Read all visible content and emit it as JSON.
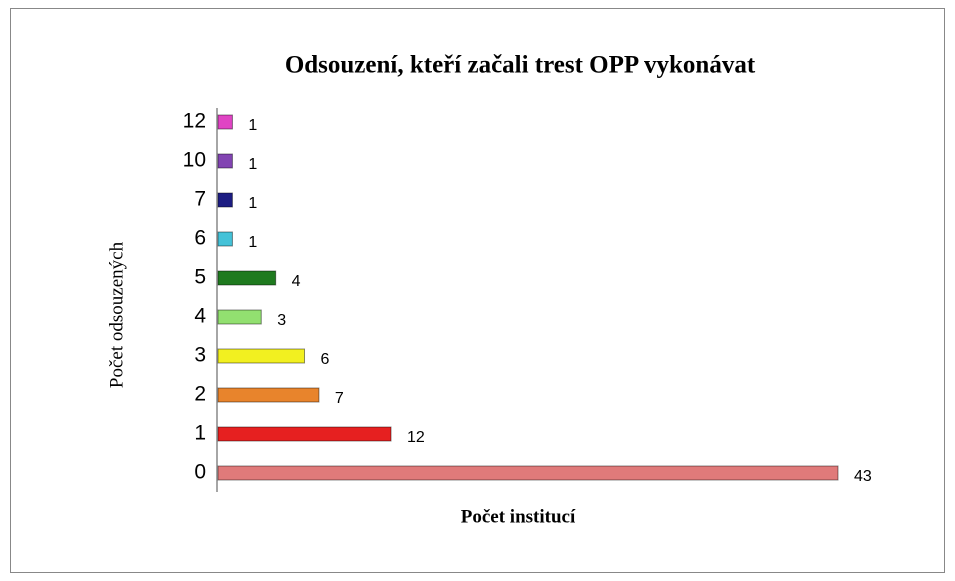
{
  "chart_data": {
    "type": "barh",
    "title": "Odsouzení, kteří začali trest OPP vykonávat",
    "x_label": "Počet institucí",
    "y_label": "Počet odsouzených",
    "categories": [
      "0",
      "1",
      "2",
      "3",
      "4",
      "5",
      "6",
      "7",
      "10",
      "12"
    ],
    "values": [
      43,
      12,
      7,
      6,
      3,
      4,
      1,
      1,
      1,
      1
    ],
    "colors": [
      "#e07a7a",
      "#e62020",
      "#e8842c",
      "#f2f020",
      "#92e070",
      "#1f7a1f",
      "#44c2d8",
      "#1c1c82",
      "#8244b2",
      "#e044c4"
    ]
  }
}
